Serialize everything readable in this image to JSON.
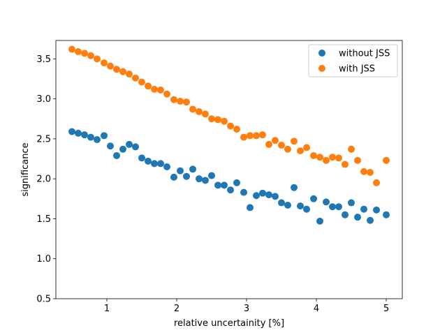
{
  "chart_data": {
    "type": "scatter",
    "xlabel": "relative uncertainity [%]",
    "ylabel": "significance",
    "xlim": [
      0.27,
      5.23
    ],
    "ylim": [
      0.5,
      3.73
    ],
    "xticks": [
      1,
      2,
      3,
      4,
      5
    ],
    "xtick_labels": [
      "1",
      "2",
      "3",
      "4",
      "5"
    ],
    "yticks": [
      0.5,
      1.0,
      1.5,
      2.0,
      2.5,
      3.0,
      3.5
    ],
    "ytick_labels": [
      "0.5",
      "1.0",
      "1.5",
      "2.0",
      "2.5",
      "3.0",
      "3.5"
    ],
    "grid": false,
    "legend_position": "top-right",
    "x": [
      0.5,
      0.59,
      0.68,
      0.77,
      0.86,
      0.96,
      1.05,
      1.14,
      1.23,
      1.32,
      1.41,
      1.5,
      1.59,
      1.68,
      1.77,
      1.86,
      1.96,
      2.05,
      2.14,
      2.23,
      2.32,
      2.41,
      2.5,
      2.59,
      2.68,
      2.77,
      2.86,
      2.96,
      3.05,
      3.14,
      3.23,
      3.32,
      3.41,
      3.5,
      3.59,
      3.68,
      3.77,
      3.86,
      3.96,
      4.05,
      4.14,
      4.23,
      4.32,
      4.41,
      4.5,
      4.59,
      4.68,
      4.77,
      4.86,
      5.0
    ],
    "series": [
      {
        "name": "without JSS",
        "color": "#1f77b4",
        "values": [
          2.59,
          2.57,
          2.55,
          2.52,
          2.49,
          2.54,
          2.41,
          2.29,
          2.37,
          2.43,
          2.4,
          2.26,
          2.22,
          2.19,
          2.19,
          2.15,
          2.02,
          2.1,
          2.03,
          2.12,
          2.0,
          1.98,
          2.04,
          1.92,
          1.92,
          1.86,
          1.95,
          1.83,
          1.64,
          1.79,
          1.82,
          1.8,
          1.78,
          1.7,
          1.67,
          1.89,
          1.66,
          1.62,
          1.75,
          1.47,
          1.71,
          1.65,
          1.65,
          1.55,
          1.7,
          1.52,
          1.62,
          1.48,
          1.61,
          1.55
        ]
      },
      {
        "name": "with JSS",
        "color": "#ff7f0e",
        "values": [
          3.62,
          3.59,
          3.57,
          3.54,
          3.5,
          3.45,
          3.41,
          3.37,
          3.34,
          3.31,
          3.26,
          3.21,
          3.16,
          3.12,
          3.11,
          3.06,
          2.99,
          2.97,
          2.96,
          2.87,
          2.84,
          2.81,
          2.75,
          2.74,
          2.72,
          2.66,
          2.62,
          2.52,
          2.54,
          2.54,
          2.55,
          2.43,
          2.48,
          2.42,
          2.37,
          2.47,
          2.35,
          2.39,
          2.29,
          2.27,
          2.23,
          2.27,
          2.26,
          2.18,
          2.37,
          2.23,
          2.09,
          2.08,
          1.95,
          2.23
        ]
      }
    ]
  }
}
